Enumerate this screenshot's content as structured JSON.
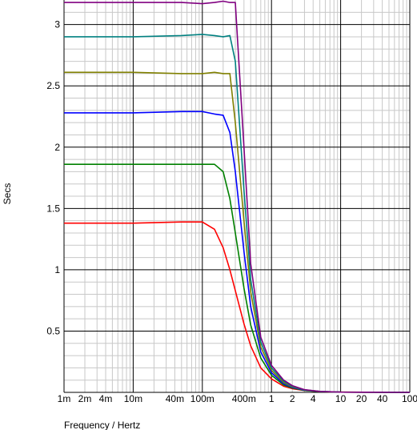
{
  "chart_data": {
    "type": "line",
    "title": "",
    "xlabel": "Frequency / Hertz",
    "ylabel": "Secs",
    "xscale": "log",
    "xlim": [
      0.001,
      100
    ],
    "ylim": [
      0,
      3.2
    ],
    "grid": true,
    "x_ticks": [
      {
        "value": 0.001,
        "label": "1m"
      },
      {
        "value": 0.002,
        "label": "2m"
      },
      {
        "value": 0.004,
        "label": "4m"
      },
      {
        "value": 0.01,
        "label": "10m"
      },
      {
        "value": 0.04,
        "label": "40m"
      },
      {
        "value": 0.1,
        "label": "100m"
      },
      {
        "value": 0.4,
        "label": "400m"
      },
      {
        "value": 1,
        "label": "1"
      },
      {
        "value": 2,
        "label": "2"
      },
      {
        "value": 4,
        "label": "4"
      },
      {
        "value": 10,
        "label": "10"
      },
      {
        "value": 20,
        "label": "20"
      },
      {
        "value": 40,
        "label": "40"
      },
      {
        "value": 100,
        "label": "100"
      }
    ],
    "y_ticks": [
      {
        "value": 0.5,
        "label": "0.5"
      },
      {
        "value": 1,
        "label": "1"
      },
      {
        "value": 1.5,
        "label": "1.5"
      },
      {
        "value": 2,
        "label": "2"
      },
      {
        "value": 2.5,
        "label": "2.5"
      },
      {
        "value": 3,
        "label": "3"
      }
    ],
    "x": [
      0.001,
      0.01,
      0.05,
      0.1,
      0.15,
      0.2,
      0.25,
      0.3,
      0.4,
      0.5,
      0.7,
      1,
      1.5,
      2,
      3,
      5,
      10,
      100
    ],
    "series": [
      {
        "color": "#ff0000",
        "values": [
          1.38,
          1.38,
          1.39,
          1.39,
          1.33,
          1.18,
          1.0,
          0.83,
          0.56,
          0.38,
          0.2,
          0.11,
          0.05,
          0.03,
          0.015,
          0.006,
          0.002,
          0.0
        ]
      },
      {
        "color": "#008000",
        "values": [
          1.86,
          1.86,
          1.86,
          1.86,
          1.86,
          1.8,
          1.58,
          1.3,
          0.85,
          0.55,
          0.28,
          0.14,
          0.06,
          0.035,
          0.016,
          0.006,
          0.002,
          0.0
        ]
      },
      {
        "color": "#0000ff",
        "values": [
          2.28,
          2.28,
          2.29,
          2.29,
          2.27,
          2.26,
          2.12,
          1.8,
          1.15,
          0.7,
          0.33,
          0.16,
          0.07,
          0.04,
          0.018,
          0.007,
          0.002,
          0.0
        ]
      },
      {
        "color": "#808000",
        "values": [
          2.61,
          2.61,
          2.6,
          2.6,
          2.61,
          2.6,
          2.6,
          2.2,
          1.4,
          0.82,
          0.37,
          0.18,
          0.08,
          0.045,
          0.02,
          0.007,
          0.002,
          0.0
        ]
      },
      {
        "color": "#008080",
        "values": [
          2.9,
          2.9,
          2.91,
          2.92,
          2.91,
          2.9,
          2.91,
          2.7,
          1.65,
          0.92,
          0.41,
          0.2,
          0.09,
          0.05,
          0.02,
          0.008,
          0.002,
          0.0
        ]
      },
      {
        "color": "#800080",
        "values": [
          3.18,
          3.18,
          3.18,
          3.17,
          3.18,
          3.19,
          3.18,
          3.18,
          2.0,
          1.05,
          0.45,
          0.22,
          0.1,
          0.055,
          0.022,
          0.008,
          0.002,
          0.0
        ]
      }
    ]
  }
}
